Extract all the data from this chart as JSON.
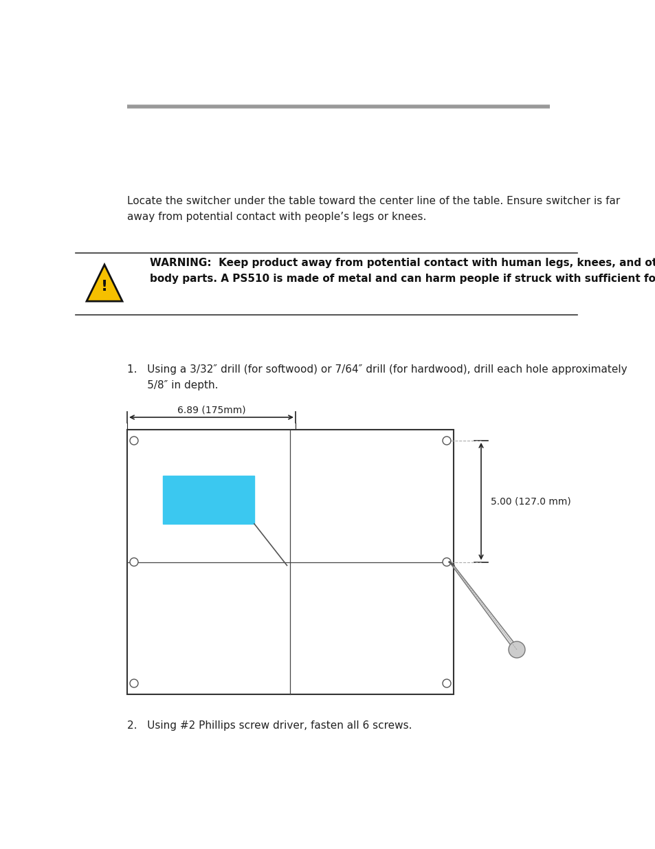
{
  "bg_color": "#ffffff",
  "top_rule_color": "#999999",
  "text_locate_switcher": "Locate the switcher under the table toward the center line of the table. Ensure switcher is far\naway from potential contact with people’s legs or knees.",
  "warning_text_bold": "WARNING:  Keep product away from potential contact with human legs, knees, and other\nbody parts. A PS510 is made of metal and can harm people if struck with sufficient force.",
  "step1_text": "1.   Using a 3/32″ drill (for softwood) or 7/64″ drill (for hardwood), drill each hole approximately\n      5/8″ in depth.",
  "dim_label": "6.89 (175mm)",
  "dim_label2": "5.00 (127.0 mm)",
  "step2_text": "2.   Using #2 Phillips screw driver, fasten all 6 screws.",
  "blue_color": "#3BC8F0"
}
